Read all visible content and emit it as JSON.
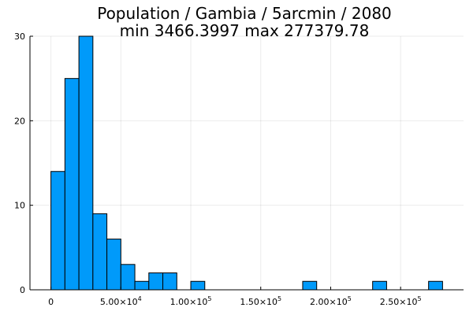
{
  "chart_data": {
    "type": "bar",
    "title_line1": "Population / Gambia / 5arcmin / 2080",
    "title_line2": "min 3466.3997  max 277379.78",
    "xlabel": "",
    "ylabel": "",
    "grid": true,
    "bar_color": "#009AFA",
    "xlim": [
      -15000,
      295000
    ],
    "ylim": [
      0,
      30
    ],
    "bin_width": 10000,
    "bins": [
      {
        "start": 0,
        "end": 10000,
        "count": 14
      },
      {
        "start": 10000,
        "end": 20000,
        "count": 25
      },
      {
        "start": 20000,
        "end": 30000,
        "count": 30
      },
      {
        "start": 30000,
        "end": 40000,
        "count": 9
      },
      {
        "start": 40000,
        "end": 50000,
        "count": 6
      },
      {
        "start": 50000,
        "end": 60000,
        "count": 3
      },
      {
        "start": 60000,
        "end": 70000,
        "count": 1
      },
      {
        "start": 70000,
        "end": 80000,
        "count": 2
      },
      {
        "start": 80000,
        "end": 90000,
        "count": 2
      },
      {
        "start": 100000,
        "end": 110000,
        "count": 1
      },
      {
        "start": 180000,
        "end": 190000,
        "count": 1
      },
      {
        "start": 230000,
        "end": 240000,
        "count": 1
      },
      {
        "start": 270000,
        "end": 280000,
        "count": 1
      }
    ],
    "x_ticks": [
      {
        "value": 0,
        "base": "0",
        "exp": ""
      },
      {
        "value": 50000,
        "base": "5.00×10",
        "exp": "4"
      },
      {
        "value": 100000,
        "base": "1.00×10",
        "exp": "5"
      },
      {
        "value": 150000,
        "base": "1.50×10",
        "exp": "5"
      },
      {
        "value": 200000,
        "base": "2.00×10",
        "exp": "5"
      },
      {
        "value": 250000,
        "base": "2.50×10",
        "exp": "5"
      }
    ],
    "y_ticks": [
      {
        "value": 0,
        "label": "0"
      },
      {
        "value": 10,
        "label": "10"
      },
      {
        "value": 20,
        "label": "20"
      },
      {
        "value": 30,
        "label": "30"
      }
    ]
  }
}
